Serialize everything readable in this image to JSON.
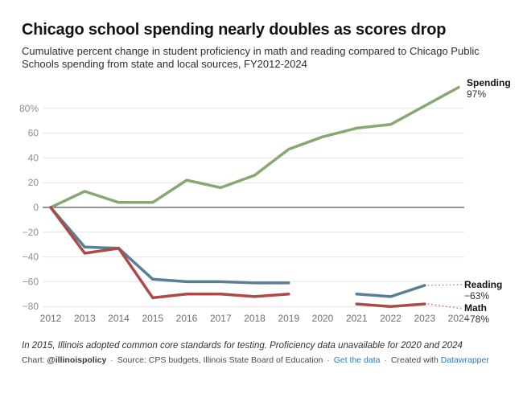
{
  "header": {
    "title": "Chicago school spending nearly doubles as scores drop",
    "subtitle": "Cumulative percent change in student proficiency in math and reading compared to Chicago Public Schools spending from state and local sources, FY2012-2024"
  },
  "chart_data": {
    "type": "line",
    "title": "Chicago school spending nearly doubles as scores drop",
    "x": [
      "2012",
      "2013",
      "2014",
      "2015",
      "2016",
      "2017",
      "2018",
      "2019",
      "2020",
      "2021",
      "2022",
      "2023",
      "2024"
    ],
    "y_ticks": [
      80,
      60,
      40,
      20,
      0,
      -20,
      -40,
      -60,
      -80
    ],
    "y_tick_labels": [
      "80%",
      "60",
      "40",
      "20",
      "0",
      "−20",
      "−40",
      "−60",
      "−80"
    ],
    "ylim": [
      -88,
      102
    ],
    "grid": true,
    "legend_position": "end-of-line-labels",
    "grid_color": "#e4e4e4",
    "zero_line_color": "#2b2b2b",
    "axis_label_color": "#6f6f6f",
    "series": [
      {
        "name": "Spending",
        "color": "#87A870",
        "values": [
          0,
          13,
          4,
          4,
          22,
          16,
          26,
          47,
          57,
          64,
          67,
          82,
          97
        ],
        "end_label": {
          "label": "Spending",
          "value": "97%"
        }
      },
      {
        "name": "Reading",
        "color": "#5A7E94",
        "values": [
          0,
          -32,
          -33,
          -58,
          -60,
          -60,
          -61,
          -61,
          null,
          -70,
          -72,
          -63,
          null
        ],
        "connector": true,
        "end_label": {
          "label": "Reading",
          "value": "−63%"
        }
      },
      {
        "name": "Math",
        "color": "#AC4A48",
        "values": [
          0,
          -37,
          -33,
          -73,
          -70,
          -70,
          -72,
          -70,
          null,
          -78,
          -80,
          -78,
          null
        ],
        "connector": true,
        "end_label": {
          "label": "Math",
          "value": "−78%"
        }
      }
    ]
  },
  "footer": {
    "note": "In 2015, Illinois adopted common core standards for testing. Proficiency data unavailable for 2020 and 2024",
    "credit": {
      "chart_label": "Chart:",
      "author": "@illinoispolicy",
      "separator": "·",
      "source": "Source: CPS budgets, Illinois State Board of Education",
      "get_data_link": "Get the data",
      "created_with": "Created with",
      "tool_link": "Datawrapper"
    }
  }
}
